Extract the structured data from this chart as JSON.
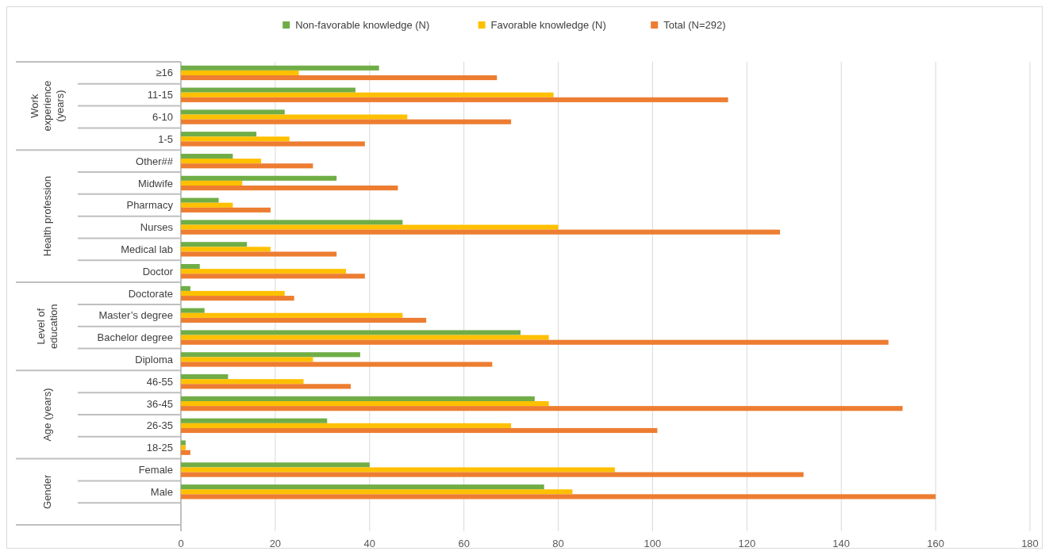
{
  "chart_data": {
    "type": "bar",
    "orientation": "horizontal",
    "categories": [
      "≥16",
      "11-15",
      "6-10",
      "1-5",
      "Other##",
      "Midwife",
      "Pharmacy",
      "Nurses",
      "Medical lab",
      "Doctor",
      "Doctorate",
      "Master’s degree",
      "Bachelor degree",
      "Diploma",
      "46-55",
      "36-45",
      "26-35",
      "18-25",
      "Female",
      "Male",
      null
    ],
    "series": [
      {
        "name": "Non-favorable knowledge (N)",
        "color": "#70ad47",
        "values": [
          42,
          37,
          22,
          16,
          11,
          33,
          8,
          47,
          14,
          4,
          2,
          5,
          72,
          38,
          10,
          75,
          31,
          1,
          40,
          77,
          null
        ]
      },
      {
        "name": "Favorable knowledge (N)",
        "color": "#ffc000",
        "values": [
          25,
          79,
          48,
          23,
          17,
          13,
          11,
          80,
          19,
          35,
          22,
          47,
          78,
          28,
          26,
          78,
          70,
          1,
          92,
          83,
          null
        ]
      },
      {
        "name": "Total (N=292)",
        "color": "#ed7d31",
        "values": [
          67,
          116,
          70,
          39,
          28,
          46,
          19,
          127,
          33,
          39,
          24,
          52,
          150,
          66,
          36,
          153,
          101,
          2,
          132,
          160,
          null
        ]
      }
    ],
    "xlim": [
      0,
      180
    ],
    "xticks": [
      0,
      20,
      40,
      60,
      80,
      100,
      120,
      140,
      160,
      180
    ],
    "grid": "x",
    "legend": "top",
    "annotations": [
      "Work experience (years)",
      "Health profession",
      "Level of education",
      "Age (years)",
      "Gender"
    ]
  }
}
